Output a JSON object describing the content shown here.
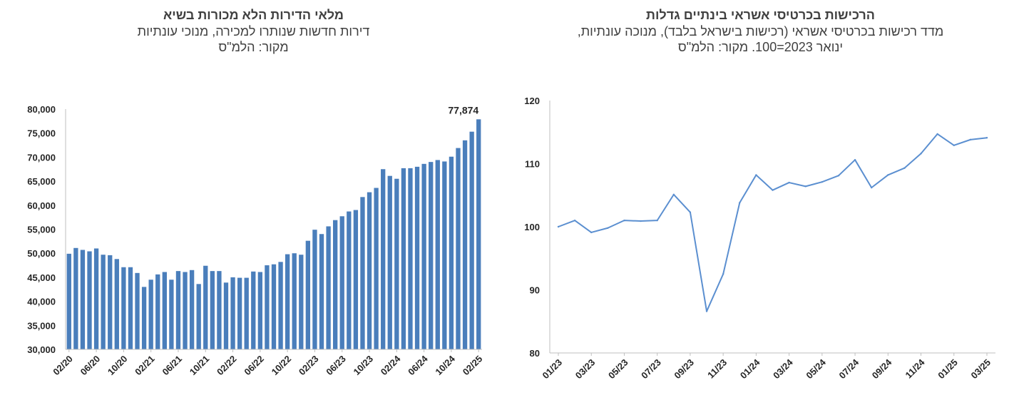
{
  "colors": {
    "bar": "#4a7ebb",
    "line": "#5b8fd0",
    "axis": "#bfbfbf",
    "text": "#262626"
  },
  "left": {
    "title": "מלאי הדירות הלא מכורות בשיא",
    "subtitle1": "דירות חדשות שנותרו למכירה, מנוכי עונתיות",
    "subtitle2": "מקור: הלמ\"ס"
  },
  "right": {
    "title": "הרכישות בכרטיסי אשראי בינתיים גדלות",
    "subtitle1": "מדד רכישות בכרטיסי אשראי (רכישות בישראל בלבד), מנוכה עונתיות,",
    "subtitle2": "ינואר 2023=100. מקור: הלמ\"ס"
  },
  "chart_data": [
    {
      "type": "bar",
      "title": "מלאי הדירות הלא מכורות בשיא",
      "ylim": [
        30000,
        80000
      ],
      "yticks": [
        30000,
        35000,
        40000,
        45000,
        50000,
        55000,
        60000,
        65000,
        70000,
        75000,
        80000
      ],
      "ytick_labels": [
        "30,000",
        "35,000",
        "40,000",
        "45,000",
        "50,000",
        "55,000",
        "60,000",
        "65,000",
        "70,000",
        "75,000",
        "80,000"
      ],
      "xtick_labels": [
        "02/20",
        "06/20",
        "10/20",
        "02/21",
        "06/21",
        "10/21",
        "02/22",
        "06/22",
        "10/22",
        "02/23",
        "06/23",
        "10/23",
        "02/24",
        "06/24",
        "10/24",
        "02/25"
      ],
      "xtick_every": 4,
      "categories": [
        "02/20",
        "03/20",
        "04/20",
        "05/20",
        "06/20",
        "07/20",
        "08/20",
        "09/20",
        "10/20",
        "11/20",
        "12/20",
        "01/21",
        "02/21",
        "03/21",
        "04/21",
        "05/21",
        "06/21",
        "07/21",
        "08/21",
        "09/21",
        "10/21",
        "11/21",
        "12/21",
        "01/22",
        "02/22",
        "03/22",
        "04/22",
        "05/22",
        "06/22",
        "07/22",
        "08/22",
        "09/22",
        "10/22",
        "11/22",
        "12/22",
        "01/23",
        "02/23",
        "03/23",
        "04/23",
        "05/23",
        "06/23",
        "07/23",
        "08/23",
        "09/23",
        "10/23",
        "11/23",
        "12/23",
        "01/24",
        "02/24",
        "03/24",
        "04/24",
        "05/24",
        "06/24",
        "07/24",
        "08/24",
        "09/24",
        "10/24",
        "11/24",
        "12/24",
        "01/25",
        "02/25"
      ],
      "values": [
        49900,
        51100,
        50700,
        50400,
        51000,
        49700,
        49600,
        48800,
        47100,
        47100,
        45900,
        43000,
        44500,
        45600,
        46100,
        44500,
        46300,
        46100,
        46500,
        43600,
        47400,
        46300,
        46300,
        43900,
        45000,
        44900,
        44900,
        46200,
        46100,
        47500,
        47700,
        48200,
        49800,
        50000,
        49700,
        52600,
        54900,
        54000,
        55600,
        56900,
        57700,
        58700,
        59000,
        61700,
        62700,
        63600,
        67500,
        66100,
        65500,
        67700,
        67700,
        68000,
        68600,
        69000,
        69400,
        69100,
        70100,
        71900,
        73500,
        75300,
        77874
      ],
      "data_label": "77,874"
    },
    {
      "type": "line",
      "title": "הרכישות בכרטיסי אשראי בינתיים גדלות",
      "ylim": [
        80,
        120
      ],
      "yticks": [
        80,
        90,
        100,
        110,
        120
      ],
      "ytick_labels": [
        "80",
        "90",
        "100",
        "110",
        "120"
      ],
      "xtick_labels": [
        "01/23",
        "03/23",
        "05/23",
        "07/23",
        "09/23",
        "11/23",
        "01/24",
        "03/24",
        "05/24",
        "07/24",
        "09/24",
        "11/24",
        "01/25",
        "03/25"
      ],
      "xtick_every": 2,
      "categories": [
        "01/23",
        "02/23",
        "03/23",
        "04/23",
        "05/23",
        "06/23",
        "07/23",
        "08/23",
        "09/23",
        "10/23",
        "11/23",
        "12/23",
        "01/24",
        "02/24",
        "03/24",
        "04/24",
        "05/24",
        "06/24",
        "07/24",
        "08/24",
        "09/24",
        "10/24",
        "11/24",
        "12/24",
        "01/25",
        "02/25",
        "03/25"
      ],
      "values": [
        100,
        101,
        99.1,
        99.8,
        101,
        100.9,
        101,
        105.1,
        102.3,
        86.6,
        92.5,
        103.8,
        108.2,
        105.8,
        107,
        106.4,
        107.1,
        108.1,
        110.6,
        106.2,
        108.2,
        109.3,
        111.6,
        114.7,
        112.9,
        113.8,
        114.1
      ]
    }
  ]
}
